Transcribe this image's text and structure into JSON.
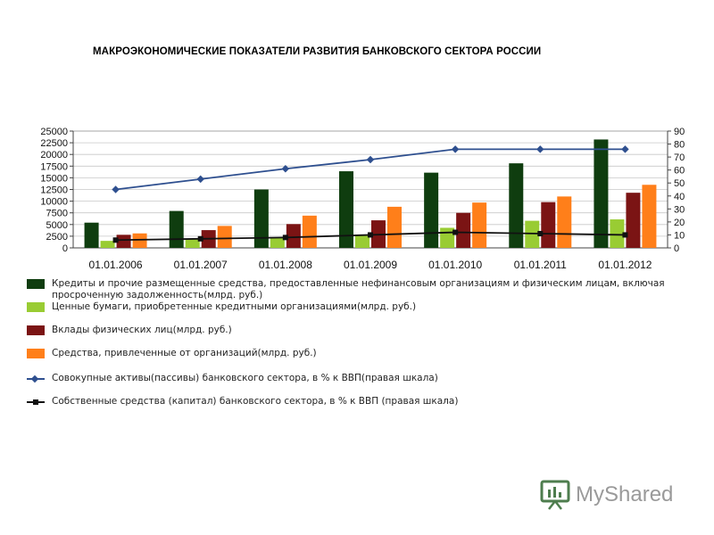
{
  "title": "МАКРОЭКОНОМИЧЕСКИЕ ПОКАЗАТЕЛИ РАЗВИТИЯ БАНКОВСКОГО СЕКТОРА РОССИИ",
  "watermark": "MyShared",
  "chart_data": {
    "type": "bar",
    "categories": [
      "01.01.2006",
      "01.01.2007",
      "01.01.2008",
      "01.01.2009",
      "01.01.2010",
      "01.01.2011",
      "01.01.2012"
    ],
    "y_left": {
      "ticks": [
        0,
        2500,
        5000,
        7500,
        10000,
        12500,
        15000,
        17500,
        20000,
        22500,
        25000
      ],
      "ylim": [
        0,
        25000
      ]
    },
    "y_right": {
      "ticks": [
        0,
        10,
        20,
        30,
        40,
        50,
        60,
        70,
        80,
        90
      ],
      "ylim": [
        0,
        90
      ]
    },
    "grid": true,
    "legend_position": "bottom",
    "series": [
      {
        "name": "Кредиты и прочие размещенные средства, предоставленные нефинансовым организациям и физическим лицам, включая просроченную задолженность(млрд. руб.)",
        "kind": "bar",
        "axis": "left",
        "color": "#0f3d0f",
        "values": [
          5400,
          7900,
          12500,
          16400,
          16100,
          18100,
          23200
        ]
      },
      {
        "name": "Ценные бумаги, приобретенные кредитными организациями(млрд. руб.)",
        "kind": "bar",
        "axis": "left",
        "color": "#99cc33",
        "values": [
          1500,
          2000,
          2200,
          2800,
          4300,
          5800,
          6100
        ]
      },
      {
        "name": "Вклады физических лиц(млрд. руб.)",
        "kind": "bar",
        "axis": "left",
        "color": "#7b1414",
        "values": [
          2800,
          3800,
          5100,
          5900,
          7500,
          9800,
          11800
        ]
      },
      {
        "name": "Средства, привлеченные от организаций(млрд. руб.)",
        "kind": "bar",
        "axis": "left",
        "color": "#ff7f1a",
        "values": [
          3100,
          4700,
          6900,
          8800,
          9700,
          11000,
          13500
        ]
      },
      {
        "name": "Совокупные активы(пассивы) банковского сектора, в % к ВВП(правая шкала)",
        "kind": "line",
        "axis": "right",
        "marker": "diamond",
        "color": "#2e4f8f",
        "values": [
          45,
          53,
          61,
          68,
          76,
          76,
          76
        ]
      },
      {
        "name": "Собственные средства (капитал) банковского сектора, в % к ВВП (правая шкала)",
        "kind": "line",
        "axis": "right",
        "marker": "square",
        "color": "#111111",
        "values": [
          6,
          7,
          8,
          10,
          12,
          11,
          10
        ]
      }
    ]
  }
}
